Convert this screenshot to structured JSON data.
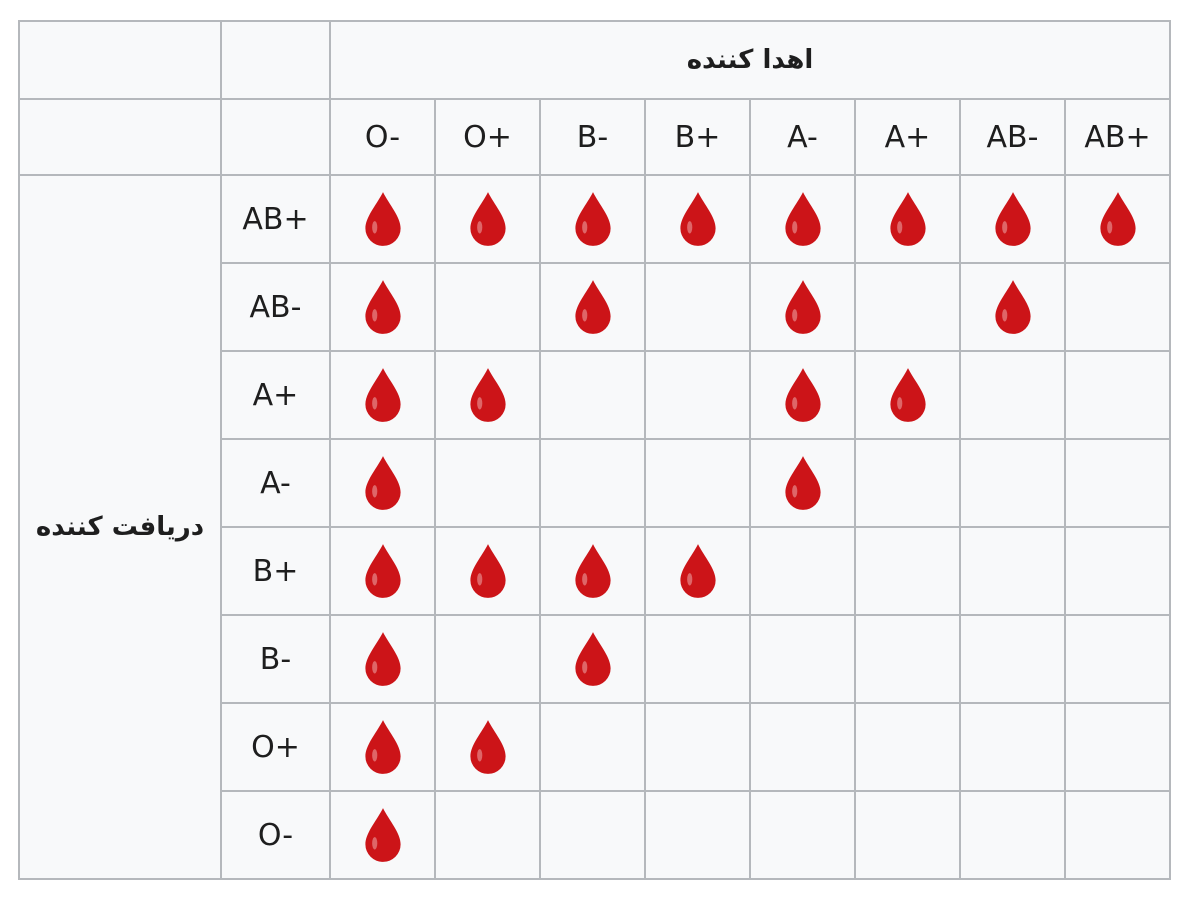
{
  "table": {
    "donor_title": "اهدا کننده",
    "recipient_title": "دریافت کننده",
    "columns": [
      "O-",
      "O+",
      "B-",
      "B+",
      "A-",
      "A+",
      "AB-",
      "AB+"
    ],
    "rows": [
      {
        "label": "AB+",
        "compatible": [
          1,
          1,
          1,
          1,
          1,
          1,
          1,
          1
        ]
      },
      {
        "label": "AB-",
        "compatible": [
          1,
          0,
          1,
          0,
          1,
          0,
          1,
          0
        ]
      },
      {
        "label": "A+",
        "compatible": [
          1,
          1,
          0,
          0,
          1,
          1,
          0,
          0
        ]
      },
      {
        "label": "A-",
        "compatible": [
          1,
          0,
          0,
          0,
          1,
          0,
          0,
          0
        ]
      },
      {
        "label": "B+",
        "compatible": [
          1,
          1,
          1,
          1,
          0,
          0,
          0,
          0
        ]
      },
      {
        "label": "B-",
        "compatible": [
          1,
          0,
          1,
          0,
          0,
          0,
          0,
          0
        ]
      },
      {
        "label": "O+",
        "compatible": [
          1,
          1,
          0,
          0,
          0,
          0,
          0,
          0
        ]
      },
      {
        "label": "O-",
        "compatible": [
          1,
          0,
          0,
          0,
          0,
          0,
          0,
          0
        ]
      }
    ],
    "drop_icon": "blood-drop-icon",
    "drop_color": "#cc1418"
  }
}
